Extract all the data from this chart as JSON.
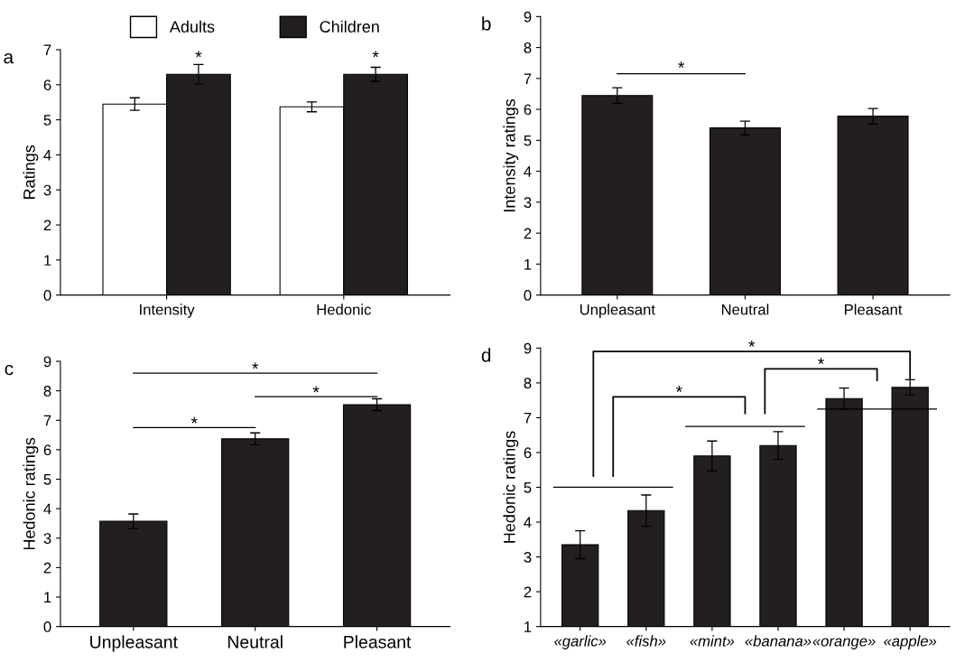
{
  "chart_data": [
    {
      "type": "bar",
      "title": "a",
      "ylabel": "Ratings",
      "categories": [
        "Intensity",
        "Hedonic"
      ],
      "legend": "top",
      "ylim": [
        0,
        7
      ],
      "yticks": [
        0,
        1,
        2,
        3,
        4,
        5,
        6,
        7
      ],
      "grid": false,
      "series": [
        {
          "name": "Adults",
          "color": "#ffffff",
          "values": [
            5.45,
            5.37
          ],
          "errors": [
            0.18,
            0.14
          ]
        },
        {
          "name": "Children",
          "color": "#231f20",
          "values": [
            6.3,
            6.3
          ],
          "errors": [
            0.28,
            0.2
          ]
        }
      ],
      "annotations": [
        "*",
        "*"
      ]
    },
    {
      "type": "bar",
      "title": "b",
      "ylabel": "Intensity ratings",
      "categories": [
        "Unpleasant",
        "Neutral",
        "Pleasant"
      ],
      "ylim": [
        0,
        9
      ],
      "yticks": [
        0,
        1,
        2,
        3,
        4,
        5,
        6,
        7,
        8,
        9
      ],
      "grid": false,
      "series": [
        {
          "color": "#231f20",
          "values": [
            6.45,
            5.4,
            5.78
          ],
          "errors": [
            0.25,
            0.22,
            0.25
          ]
        }
      ],
      "annotations": [
        "*"
      ]
    },
    {
      "type": "bar",
      "title": "c",
      "ylabel": "Hedonic ratings",
      "categories": [
        "Unpleasant",
        "Neutral",
        "Pleasant"
      ],
      "ylim": [
        0,
        9
      ],
      "yticks": [
        0,
        1,
        2,
        3,
        4,
        5,
        6,
        7,
        8,
        9
      ],
      "grid": false,
      "series": [
        {
          "color": "#231f20",
          "values": [
            3.57,
            6.37,
            7.53
          ],
          "errors": [
            0.25,
            0.2,
            0.2
          ]
        }
      ],
      "annotations": [
        "*",
        "*",
        "*"
      ]
    },
    {
      "type": "bar",
      "title": "d",
      "ylabel": "Hedonic ratings",
      "categories": [
        "«garlic»",
        "«fish»",
        "«mint»",
        "«banana»",
        "«orange»",
        "«apple»"
      ],
      "ylim": [
        1,
        9
      ],
      "yticks": [
        1,
        2,
        3,
        4,
        5,
        6,
        7,
        8,
        9
      ],
      "grid": false,
      "series": [
        {
          "color": "#231f20",
          "values": [
            3.35,
            4.33,
            5.9,
            6.2,
            7.55,
            7.87
          ],
          "errors": [
            0.4,
            0.45,
            0.43,
            0.4,
            0.3,
            0.22
          ]
        }
      ],
      "annotations": [
        "*",
        "*",
        "*"
      ]
    }
  ]
}
